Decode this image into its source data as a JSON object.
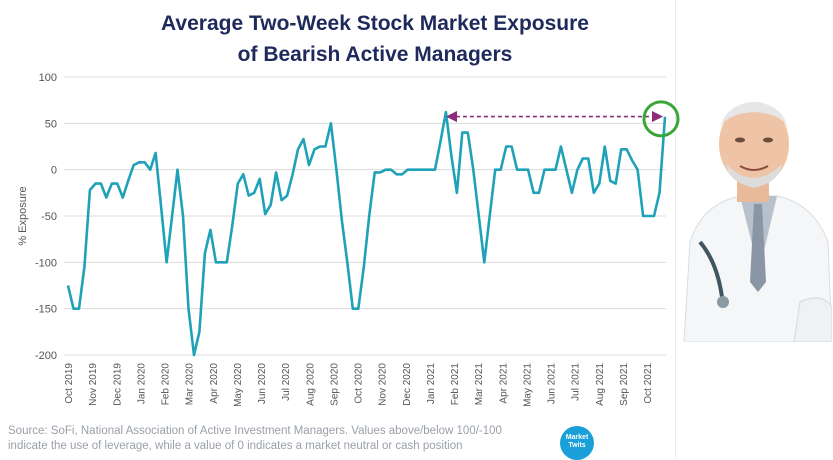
{
  "title_line1": "Average Two-Week Stock Market Exposure",
  "title_line2": "of Bearish Active Managers",
  "source_line1": "Source: SoFi, National Association of Active Investment Managers. Values above/below 100/-100",
  "source_line2": "indicate the use of leverage, while a value of 0 indicates a market neutral or cash position",
  "logo_line1": "Market",
  "logo_line2": "Twits",
  "colors": {
    "line": "#1fa2b8",
    "title": "#1f2a5c",
    "arrow": "#8a2d7a",
    "highlight_circle": "#3aa63a"
  },
  "chart_data": {
    "type": "line",
    "title": "Average Two-Week Stock Market Exposure of Bearish Active Managers",
    "ylabel": "% Exposure",
    "ylim": [
      -200,
      100
    ],
    "yticks": [
      100,
      50,
      0,
      -50,
      -100,
      -150,
      -200
    ],
    "grid": "horizontal",
    "xtick_labels": [
      "Oct 2019",
      "Nov 2019",
      "Dec 2019",
      "Jan 2020",
      "Feb 2020",
      "Mar 2020",
      "Apr 2020",
      "May 2020",
      "Jun 2020",
      "Jul 2020",
      "Aug 2020",
      "Sep 2020",
      "Oct 2020",
      "Nov 2020",
      "Dec 2020",
      "Jan 2021",
      "Feb 2021",
      "Mar 2021",
      "Apr 2021",
      "May 2021",
      "Jun 2021",
      "Jul 2021",
      "Aug 2021",
      "Sep 2021",
      "Oct 2021"
    ],
    "series": [
      {
        "values": [
          -125,
          -150,
          -150,
          -105,
          -22,
          -15,
          -15,
          -30,
          -15,
          -15,
          -30,
          -12,
          5,
          8,
          8,
          0,
          18,
          -40,
          -100,
          -50,
          0,
          -50,
          -150,
          -200,
          -175,
          -90,
          -65,
          -100,
          -100,
          -100,
          -60,
          -15,
          -5,
          -28,
          -25,
          -10,
          -48,
          -38,
          -3,
          -33,
          -28,
          -5,
          22,
          33,
          5,
          22,
          25,
          25,
          50,
          0,
          -55,
          -100,
          -150,
          -150,
          -105,
          -50,
          -3,
          -3,
          0,
          0,
          -5,
          -5,
          0,
          0,
          0,
          0,
          0,
          0,
          30,
          62,
          15,
          -25,
          40,
          40,
          0,
          -50,
          -100,
          -50,
          0,
          0,
          25,
          25,
          0,
          0,
          0,
          -25,
          -25,
          0,
          0,
          0,
          25,
          0,
          -25,
          0,
          12,
          12,
          -25,
          -15,
          25,
          -12,
          -15,
          22,
          22,
          10,
          0,
          -50,
          -50,
          -50,
          -25,
          57
        ]
      }
    ],
    "annotation": "arrow from the early-2021 peak to the latest value, latest value circled"
  }
}
